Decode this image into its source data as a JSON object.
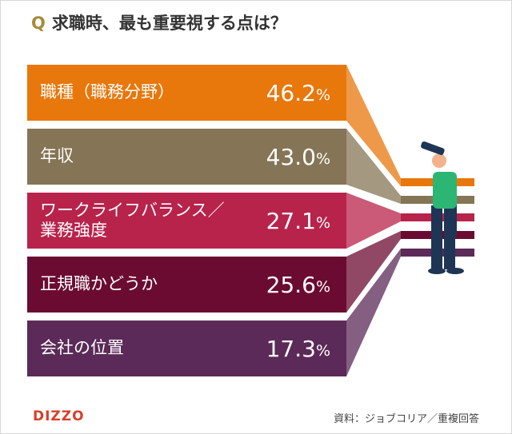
{
  "header": {
    "mark": "Q",
    "title": "求職時、最も重要視する点は？"
  },
  "items": [
    {
      "label": "職種（職務分野）",
      "value": "46.2",
      "unit": "%",
      "color": "#e8770c"
    },
    {
      "label": "年収",
      "value": "43.0",
      "unit": "%",
      "color": "#857556"
    },
    {
      "label": "ワークライフバランス／\n業務強度",
      "value": "27.1",
      "unit": "%",
      "color": "#b8234b"
    },
    {
      "label": "正規職かどうか",
      "value": "25.6",
      "unit": "%",
      "color": "#6b0b31"
    },
    {
      "label": "会社の位置",
      "value": "17.3",
      "unit": "%",
      "color": "#5b2a58"
    }
  ],
  "footer": {
    "logo": "DIZZO",
    "source": "資料：ジョブコリア／重複回答"
  }
}
